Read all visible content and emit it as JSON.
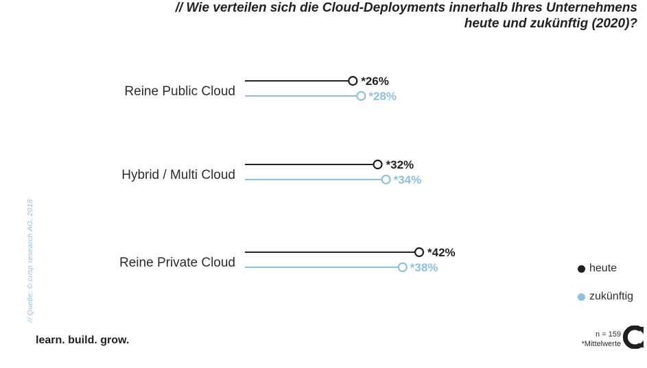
{
  "title_line1": "// Wie verteilen sich die Cloud-Deployments innerhalb Ihres Unternehmens",
  "title_line2": "heute und zukünftig (2020)?",
  "source": "// Quelle: © crisp research AG, 2018",
  "tagline": "learn. build. grow.",
  "legend": [
    {
      "label": "heute",
      "color": "#1f1f24"
    },
    {
      "label": "zukünftig",
      "color": "#8fc0dd"
    }
  ],
  "note_n": "n = 159",
  "note_mean": "*Mittelwerte",
  "colors": {
    "heute": "#1f1f24",
    "zukuenftig": "#8fc0dd"
  },
  "chart_data": {
    "type": "dot-line",
    "categories": [
      "Reine Public Cloud",
      "Hybrid / Multi Cloud",
      "Reine Private Cloud"
    ],
    "series": [
      {
        "name": "heute",
        "values": [
          26,
          32,
          42
        ],
        "labels": [
          "*26%",
          "*32%",
          "*42%"
        ]
      },
      {
        "name": "zukünftig",
        "values": [
          28,
          34,
          38
        ],
        "labels": [
          "*28%",
          "*34%",
          "*38%"
        ]
      }
    ],
    "unit": "%",
    "legend_position": "bottom-right"
  }
}
